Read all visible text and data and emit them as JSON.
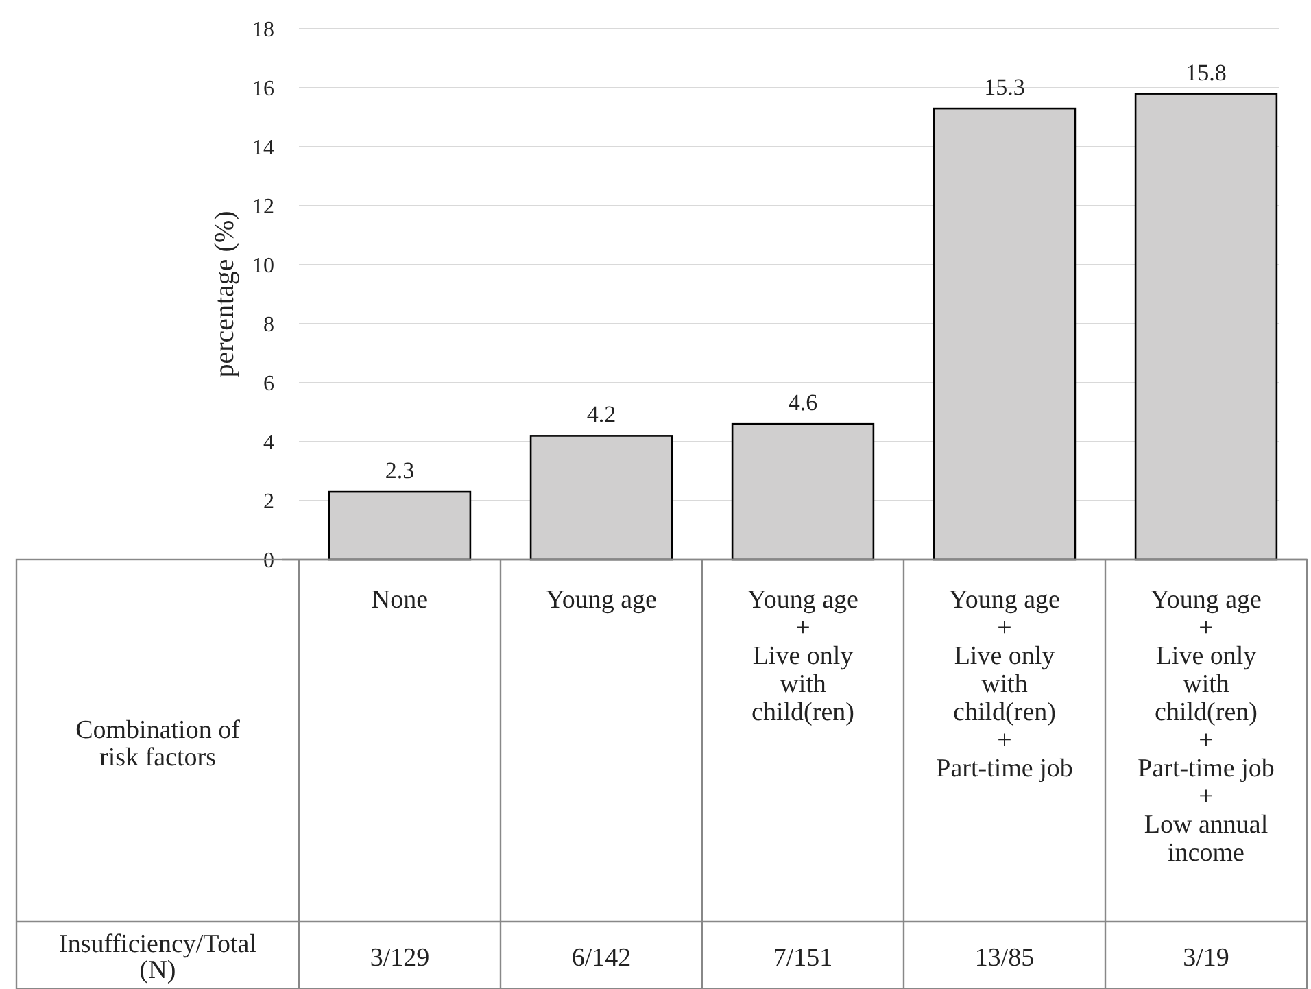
{
  "chart_data": {
    "type": "bar",
    "ylabel": "percentage (%)",
    "xlabel": "Combination of risk factors",
    "categories": [
      "None",
      "Young age",
      "Young age\n+\nLive only\nwith\nchild(ren)",
      "Young age\n+\nLive only\nwith\nchild(ren)\n+\nPart-time job",
      "Young age\n+\nLive only\nwith\nchild(ren)\n+\nPart-time job\n+\nLow annual\nincome"
    ],
    "values": [
      2.3,
      4.2,
      4.6,
      15.3,
      15.8
    ],
    "color": "#d0cfcf",
    "data_labels": true,
    "ylim": [
      0,
      18
    ],
    "yticks": [
      0,
      2,
      4,
      6,
      8,
      10,
      12,
      14,
      16,
      18
    ],
    "grid": "y",
    "annotations": [
      "Insufficiency/Total (N)",
      "3/129",
      "6/142",
      "7/151",
      "13/85",
      "3/19"
    ]
  }
}
